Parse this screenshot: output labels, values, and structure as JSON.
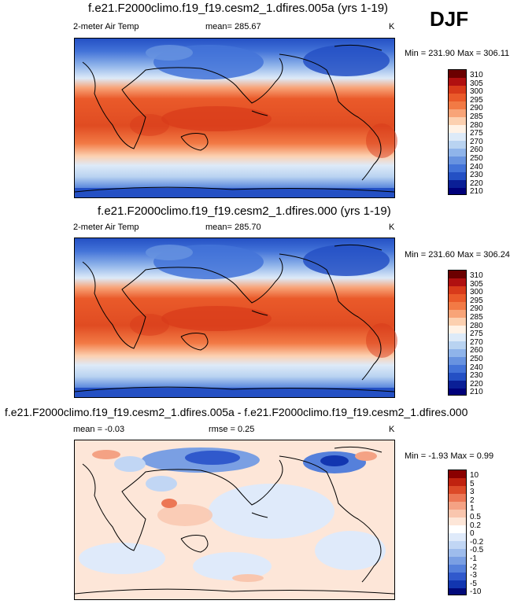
{
  "season": "DJF",
  "panels": [
    {
      "title": "f.e21.F2000climo.f19_f19.cesm2_1.dfires.005a (yrs 1-19)",
      "variable": "2-meter Air Temp",
      "mean_text": "mean= 285.67",
      "units": "K",
      "minmax_text": "Min = 231.90 Max = 306.11",
      "colorbar_labels": [
        "310",
        "305",
        "300",
        "295",
        "290",
        "285",
        "280",
        "275",
        "270",
        "260",
        "250",
        "240",
        "230",
        "220",
        "210"
      ]
    },
    {
      "title": "f.e21.F2000climo.f19_f19.cesm2_1.dfires.000 (yrs 1-19)",
      "variable": "2-meter Air Temp",
      "mean_text": "mean= 285.70",
      "units": "K",
      "minmax_text": "Min = 231.60 Max = 306.24",
      "colorbar_labels": [
        "310",
        "305",
        "300",
        "295",
        "290",
        "285",
        "280",
        "275",
        "270",
        "260",
        "250",
        "240",
        "230",
        "220",
        "210"
      ]
    },
    {
      "title": "f.e21.F2000climo.f19_f19.cesm2_1.dfires.005a - f.e21.F2000climo.f19_f19.cesm2_1.dfires.000",
      "mean_text": "mean =  -0.03",
      "rmse_text": "rmse =  0.25",
      "units": "K",
      "minmax_text": "Min =  -1.93 Max =  0.99",
      "colorbar_labels": [
        "10",
        "5",
        "3",
        "2",
        "1",
        "0.5",
        "0.2",
        "0",
        "-0.2",
        "-0.5",
        "-1",
        "-2",
        "-3",
        "-5",
        "-10"
      ]
    }
  ],
  "colors": {
    "abs_scale": [
      "#6b0000",
      "#b01010",
      "#d83a1a",
      "#ea5a2a",
      "#f27a45",
      "#f8a478",
      "#fcd0b0",
      "#fff2e6",
      "#ddeaf8",
      "#b9d3f1",
      "#8fb4ea",
      "#6893e0",
      "#4373d8",
      "#2450c4",
      "#0a1f96",
      "#00007a"
    ],
    "diff_scale": [
      "#8a0000",
      "#c0220f",
      "#dc4a28",
      "#ec7755",
      "#f4a284",
      "#f9c6ae",
      "#fde6d8",
      "#ffffff",
      "#dfeafa",
      "#c1d6f4",
      "#9ebcec",
      "#7a9fe3",
      "#5580db",
      "#3059cc",
      "#1236b0",
      "#020a7a"
    ]
  }
}
